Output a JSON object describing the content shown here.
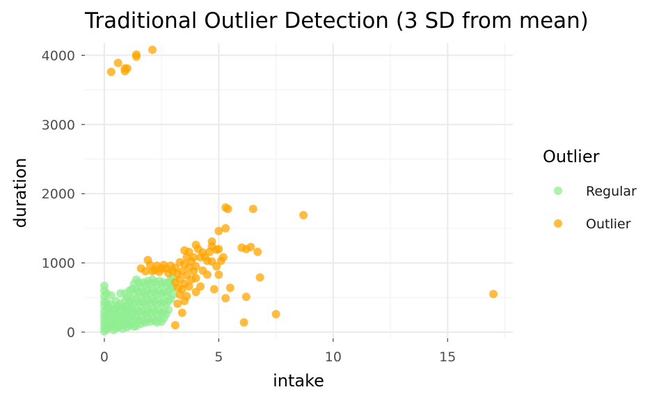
{
  "chart_data": {
    "type": "scatter",
    "title": "Traditional Outlier Detection (3 SD from mean)",
    "xlabel": "intake",
    "ylabel": "duration",
    "xlim": [
      -0.85,
      17.85
    ],
    "ylim": [
      -90,
      4175
    ],
    "x_ticks": [
      0,
      5,
      10,
      15
    ],
    "x_tick_labels": [
      "0",
      "5",
      "10",
      "15"
    ],
    "y_ticks": [
      0,
      1000,
      2000,
      3000,
      4000
    ],
    "y_tick_labels": [
      "0",
      "1000",
      "2000",
      "3000",
      "4000"
    ],
    "grid": true,
    "legend": {
      "title": "Outlier",
      "position": "right"
    },
    "series": [
      {
        "name": "Regular",
        "color": "#90ee90",
        "points": [
          [
            0.0,
            670
          ],
          [
            0.0,
            600
          ],
          [
            0.0,
            520
          ],
          [
            0.0,
            440
          ],
          [
            0.0,
            380
          ],
          [
            0.0,
            300
          ],
          [
            0.0,
            240
          ],
          [
            0.0,
            180
          ],
          [
            0.0,
            120
          ],
          [
            0.0,
            60
          ],
          [
            0.0,
            10
          ],
          [
            0.1,
            560
          ],
          [
            0.1,
            430
          ],
          [
            0.1,
            330
          ],
          [
            0.1,
            220
          ],
          [
            0.1,
            130
          ],
          [
            0.1,
            40
          ],
          [
            0.2,
            360
          ],
          [
            0.2,
            260
          ],
          [
            0.2,
            150
          ],
          [
            0.2,
            70
          ],
          [
            0.3,
            530
          ],
          [
            0.3,
            400
          ],
          [
            0.3,
            280
          ],
          [
            0.3,
            170
          ],
          [
            0.3,
            90
          ],
          [
            0.4,
            320
          ],
          [
            0.4,
            200
          ],
          [
            0.4,
            110
          ],
          [
            0.4,
            30
          ],
          [
            0.5,
            450
          ],
          [
            0.5,
            340
          ],
          [
            0.5,
            230
          ],
          [
            0.5,
            140
          ],
          [
            0.5,
            60
          ],
          [
            0.6,
            380
          ],
          [
            0.6,
            250
          ],
          [
            0.6,
            150
          ],
          [
            0.6,
            70
          ],
          [
            0.7,
            560
          ],
          [
            0.7,
            410
          ],
          [
            0.7,
            300
          ],
          [
            0.7,
            190
          ],
          [
            0.7,
            100
          ],
          [
            0.8,
            350
          ],
          [
            0.8,
            240
          ],
          [
            0.8,
            130
          ],
          [
            0.8,
            50
          ],
          [
            0.9,
            560
          ],
          [
            0.9,
            450
          ],
          [
            0.9,
            330
          ],
          [
            0.9,
            220
          ],
          [
            0.9,
            120
          ],
          [
            1.0,
            500
          ],
          [
            1.0,
            380
          ],
          [
            1.0,
            270
          ],
          [
            1.0,
            160
          ],
          [
            1.0,
            70
          ],
          [
            1.1,
            600
          ],
          [
            1.1,
            440
          ],
          [
            1.1,
            320
          ],
          [
            1.1,
            200
          ],
          [
            1.1,
            100
          ],
          [
            1.2,
            620
          ],
          [
            1.2,
            480
          ],
          [
            1.2,
            360
          ],
          [
            1.2,
            240
          ],
          [
            1.2,
            130
          ],
          [
            1.3,
            700
          ],
          [
            1.3,
            560
          ],
          [
            1.3,
            420
          ],
          [
            1.3,
            290
          ],
          [
            1.3,
            170
          ],
          [
            1.3,
            80
          ],
          [
            1.4,
            760
          ],
          [
            1.4,
            620
          ],
          [
            1.4,
            470
          ],
          [
            1.4,
            330
          ],
          [
            1.4,
            200
          ],
          [
            1.4,
            90
          ],
          [
            1.5,
            720
          ],
          [
            1.5,
            580
          ],
          [
            1.5,
            440
          ],
          [
            1.5,
            300
          ],
          [
            1.5,
            170
          ],
          [
            1.6,
            650
          ],
          [
            1.6,
            510
          ],
          [
            1.6,
            380
          ],
          [
            1.6,
            250
          ],
          [
            1.6,
            120
          ],
          [
            1.7,
            720
          ],
          [
            1.7,
            570
          ],
          [
            1.7,
            430
          ],
          [
            1.7,
            300
          ],
          [
            1.7,
            160
          ],
          [
            1.8,
            680
          ],
          [
            1.8,
            540
          ],
          [
            1.8,
            400
          ],
          [
            1.8,
            270
          ],
          [
            1.8,
            140
          ],
          [
            1.9,
            740
          ],
          [
            1.9,
            600
          ],
          [
            1.9,
            460
          ],
          [
            1.9,
            320
          ],
          [
            1.9,
            190
          ],
          [
            2.0,
            700
          ],
          [
            2.0,
            560
          ],
          [
            2.0,
            420
          ],
          [
            2.0,
            280
          ],
          [
            2.0,
            150
          ],
          [
            2.1,
            760
          ],
          [
            2.1,
            620
          ],
          [
            2.1,
            480
          ],
          [
            2.1,
            340
          ],
          [
            2.1,
            200
          ],
          [
            2.2,
            720
          ],
          [
            2.2,
            580
          ],
          [
            2.2,
            440
          ],
          [
            2.2,
            300
          ],
          [
            2.2,
            160
          ],
          [
            2.3,
            680
          ],
          [
            2.3,
            540
          ],
          [
            2.3,
            400
          ],
          [
            2.3,
            260
          ],
          [
            2.3,
            140
          ],
          [
            2.4,
            740
          ],
          [
            2.4,
            600
          ],
          [
            2.4,
            460
          ],
          [
            2.4,
            320
          ],
          [
            2.4,
            180
          ],
          [
            2.5,
            700
          ],
          [
            2.5,
            560
          ],
          [
            2.5,
            420
          ],
          [
            2.5,
            280
          ],
          [
            2.5,
            150
          ],
          [
            2.6,
            720
          ],
          [
            2.6,
            580
          ],
          [
            2.6,
            440
          ],
          [
            2.6,
            300
          ],
          [
            2.6,
            200
          ],
          [
            2.7,
            680
          ],
          [
            2.7,
            540
          ],
          [
            2.7,
            400
          ],
          [
            2.7,
            260
          ],
          [
            2.8,
            720
          ],
          [
            2.8,
            590
          ],
          [
            2.8,
            450
          ],
          [
            2.8,
            320
          ],
          [
            2.9,
            760
          ],
          [
            2.9,
            630
          ],
          [
            2.9,
            480
          ],
          [
            3.0,
            780
          ],
          [
            3.0,
            660
          ],
          [
            3.0,
            540
          ]
        ]
      },
      {
        "name": "Outlier",
        "color": "#ffa500",
        "points": [
          [
            0.3,
            3760
          ],
          [
            0.6,
            3890
          ],
          [
            0.9,
            3770
          ],
          [
            0.9,
            3810
          ],
          [
            1.0,
            3810
          ],
          [
            1.4,
            3980
          ],
          [
            1.4,
            4010
          ],
          [
            2.1,
            4080
          ],
          [
            17.0,
            550
          ],
          [
            8.7,
            1690
          ],
          [
            7.5,
            260
          ],
          [
            6.8,
            790
          ],
          [
            6.7,
            1160
          ],
          [
            6.5,
            1780
          ],
          [
            6.4,
            1230
          ],
          [
            6.2,
            1200
          ],
          [
            6.2,
            510
          ],
          [
            6.1,
            140
          ],
          [
            6.0,
            1220
          ],
          [
            5.5,
            640
          ],
          [
            5.4,
            1780
          ],
          [
            5.3,
            1800
          ],
          [
            5.3,
            1500
          ],
          [
            5.3,
            490
          ],
          [
            5.2,
            1080
          ],
          [
            5.1,
            1030
          ],
          [
            5.0,
            1200
          ],
          [
            5.0,
            1460
          ],
          [
            5.0,
            830
          ],
          [
            4.9,
            1190
          ],
          [
            4.9,
            950
          ],
          [
            4.8,
            620
          ],
          [
            4.7,
            1310
          ],
          [
            4.7,
            1240
          ],
          [
            4.7,
            1020
          ],
          [
            4.6,
            1160
          ],
          [
            4.5,
            1030
          ],
          [
            4.5,
            830
          ],
          [
            4.4,
            1090
          ],
          [
            4.3,
            1150
          ],
          [
            4.3,
            890
          ],
          [
            4.2,
            1080
          ],
          [
            4.2,
            660
          ],
          [
            4.1,
            1200
          ],
          [
            4.0,
            1260
          ],
          [
            4.0,
            950
          ],
          [
            4.0,
            780
          ],
          [
            4.0,
            580
          ],
          [
            3.9,
            1080
          ],
          [
            3.9,
            880
          ],
          [
            3.8,
            1020
          ],
          [
            3.8,
            760
          ],
          [
            3.7,
            1160
          ],
          [
            3.7,
            930
          ],
          [
            3.7,
            660
          ],
          [
            3.6,
            1080
          ],
          [
            3.6,
            820
          ],
          [
            3.6,
            520
          ],
          [
            3.5,
            1180
          ],
          [
            3.5,
            980
          ],
          [
            3.5,
            700
          ],
          [
            3.5,
            450
          ],
          [
            3.4,
            880
          ],
          [
            3.4,
            620
          ],
          [
            3.4,
            280
          ],
          [
            3.3,
            1010
          ],
          [
            3.3,
            760
          ],
          [
            3.3,
            540
          ],
          [
            3.2,
            840
          ],
          [
            3.2,
            640
          ],
          [
            3.2,
            410
          ],
          [
            3.1,
            930
          ],
          [
            3.1,
            720
          ],
          [
            3.1,
            100
          ],
          [
            3.0,
            880
          ],
          [
            2.9,
            960
          ],
          [
            2.8,
            850
          ],
          [
            2.7,
            920
          ],
          [
            2.6,
            970
          ],
          [
            2.5,
            920
          ],
          [
            2.4,
            870
          ],
          [
            2.3,
            960
          ],
          [
            2.2,
            900
          ],
          [
            2.1,
            880
          ],
          [
            2.0,
            970
          ],
          [
            1.9,
            1040
          ],
          [
            1.8,
            880
          ],
          [
            1.6,
            920
          ]
        ]
      }
    ]
  }
}
